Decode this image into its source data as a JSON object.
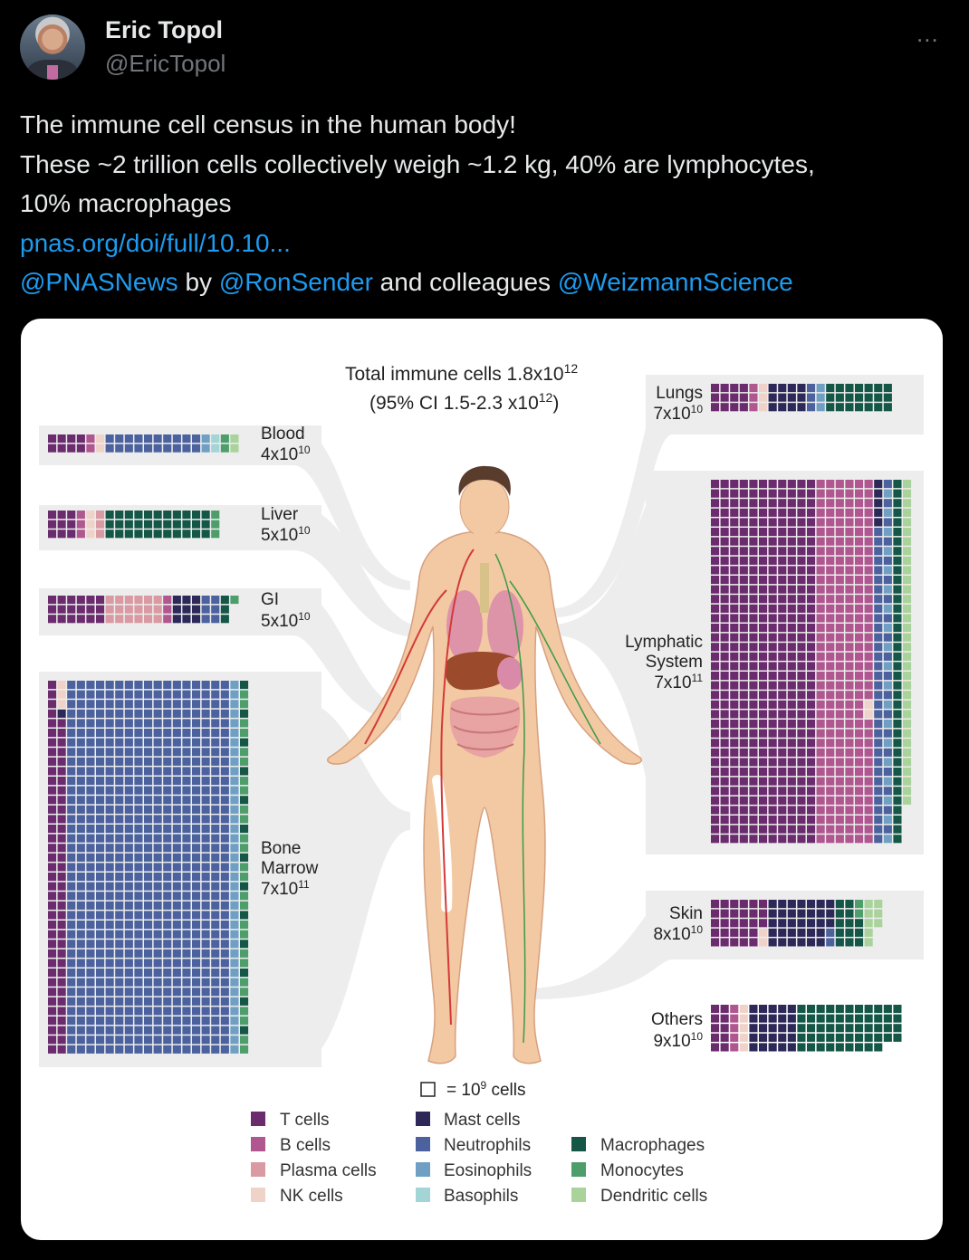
{
  "author": {
    "name": "Eric Topol",
    "handle": "@EricTopol",
    "more_icon": "..."
  },
  "tweet": {
    "line1": "The immune cell census in the human body!",
    "line2": "These ~2 trillion cells collectively weigh ~1.2 kg, 40% are lymphocytes,",
    "line3": "10% macrophages",
    "link": "pnas.org/doi/full/10.10...",
    "mention1": "@PNASNews",
    "text_by": " by ",
    "mention2": "@RonSender",
    "text_and": " and colleagues ",
    "mention3": "@WeizmannScience"
  },
  "figure": {
    "title_line1": "Total immune cells 1.8x10",
    "title_line1_exp": "12",
    "title_line2_prefix": "(95% CI 1.5-2.3 x10",
    "title_line2_exp": "12",
    "title_line2_suffix": ")",
    "scale_eq": "=  10",
    "scale_exp": "9",
    "scale_unit": " cells",
    "organs": [
      {
        "name": "Blood",
        "count": "4x10",
        "exp": "10"
      },
      {
        "name": "Liver",
        "count": "5x10",
        "exp": "10"
      },
      {
        "name": "GI",
        "count": "5x10",
        "exp": "10"
      },
      {
        "name": "Bone Marrow",
        "line1": "Bone",
        "line2": "Marrow",
        "count": "7x10",
        "exp": "11"
      },
      {
        "name": "Lungs",
        "count": "7x10",
        "exp": "10"
      },
      {
        "name": "Lymphatic System",
        "line1": "Lymphatic",
        "line2": "System",
        "count": "7x10",
        "exp": "11"
      },
      {
        "name": "Skin",
        "count": "8x10",
        "exp": "10"
      },
      {
        "name": "Others",
        "count": "9x10",
        "exp": "10"
      }
    ],
    "legend": [
      {
        "label": "T cells",
        "color": "#6b2c6e"
      },
      {
        "label": "B cells",
        "color": "#b0578f"
      },
      {
        "label": "Plasma cells",
        "color": "#d99aa3"
      },
      {
        "label": "NK cells",
        "color": "#efd3c8"
      },
      {
        "label": "Mast cells",
        "color": "#2c2858"
      },
      {
        "label": "Neutrophils",
        "color": "#4c629e"
      },
      {
        "label": "Eosinophils",
        "color": "#6fa0c3"
      },
      {
        "label": "Basophils",
        "color": "#a3d4d6"
      },
      {
        "label": "Macrophages",
        "color": "#155747"
      },
      {
        "label": "Monocytes",
        "color": "#4e9e6c"
      },
      {
        "label": "Dendritic cells",
        "color": "#a9d39a"
      }
    ]
  }
}
